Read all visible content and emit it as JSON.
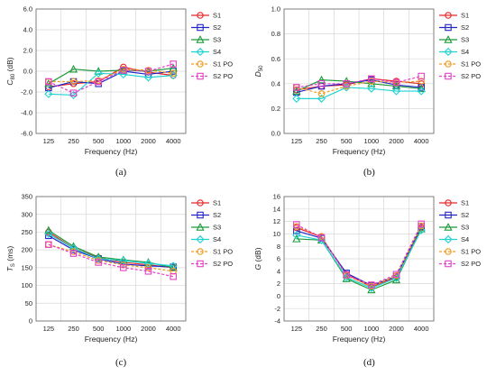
{
  "chart_data": [
    {
      "id": "a",
      "type": "line",
      "caption": "(a)",
      "ylabel_base": "C",
      "ylabel_sub": "80",
      "ylabel_unit": " (dB)",
      "xlabel": "Frequency (Hz)",
      "ylim": [
        -6,
        6
      ],
      "yticks": [
        "-6.0",
        "-4.0",
        "-2.0",
        "0.0",
        "2.0",
        "4.0",
        "6.0"
      ],
      "categories": [
        "125",
        "250",
        "500",
        "1000",
        "2000",
        "4000"
      ],
      "series": [
        {
          "name": "S1",
          "color": "#e8262a",
          "marker": "circle",
          "dashed": false,
          "values": [
            -1.5,
            -1.2,
            -1.0,
            0.4,
            -0.1,
            -0.4
          ]
        },
        {
          "name": "S2",
          "color": "#2124c9",
          "marker": "square",
          "dashed": false,
          "values": [
            -1.6,
            -1.0,
            -1.2,
            0.0,
            -0.3,
            0.0
          ]
        },
        {
          "name": "S3",
          "color": "#1c9a3a",
          "marker": "triangle",
          "dashed": false,
          "values": [
            -1.2,
            0.2,
            0.0,
            0.1,
            0.0,
            0.3
          ]
        },
        {
          "name": "S4",
          "color": "#21d2d2",
          "marker": "diamond",
          "dashed": false,
          "values": [
            -2.2,
            -2.3,
            -0.2,
            -0.3,
            -0.6,
            -0.4
          ]
        },
        {
          "name": "S1 PO",
          "color": "#f39a1c",
          "marker": "circle",
          "dashed": true,
          "values": [
            -1.0,
            -1.0,
            -0.9,
            0.2,
            0.1,
            -0.2
          ]
        },
        {
          "name": "S2 PO",
          "color": "#e53fc7",
          "marker": "square",
          "dashed": true,
          "values": [
            -1.0,
            -2.1,
            -1.0,
            0.1,
            0.0,
            0.7
          ]
        }
      ]
    },
    {
      "id": "b",
      "type": "line",
      "caption": "(b)",
      "ylabel_base": "D",
      "ylabel_sub": "50",
      "ylabel_unit": "",
      "xlabel": "Frequency (Hz)",
      "ylim": [
        0,
        1
      ],
      "yticks": [
        "0.0",
        "0.2",
        "0.4",
        "0.6",
        "0.8",
        "1.0"
      ],
      "categories": [
        "125",
        "250",
        "500",
        "1000",
        "2000",
        "4000"
      ],
      "series": [
        {
          "name": "S1",
          "color": "#e8262a",
          "marker": "circle",
          "dashed": false,
          "values": [
            0.35,
            0.38,
            0.39,
            0.44,
            0.42,
            0.4
          ]
        },
        {
          "name": "S2",
          "color": "#2124c9",
          "marker": "square",
          "dashed": false,
          "values": [
            0.33,
            0.38,
            0.4,
            0.43,
            0.39,
            0.37
          ]
        },
        {
          "name": "S3",
          "color": "#1c9a3a",
          "marker": "triangle",
          "dashed": false,
          "values": [
            0.34,
            0.43,
            0.42,
            0.4,
            0.38,
            0.36
          ]
        },
        {
          "name": "S4",
          "color": "#21d2d2",
          "marker": "diamond",
          "dashed": false,
          "values": [
            0.28,
            0.28,
            0.37,
            0.36,
            0.34,
            0.34
          ]
        },
        {
          "name": "S1 PO",
          "color": "#f39a1c",
          "marker": "circle",
          "dashed": true,
          "values": [
            0.37,
            0.32,
            0.38,
            0.42,
            0.41,
            0.42
          ]
        },
        {
          "name": "S2 PO",
          "color": "#e53fc7",
          "marker": "square",
          "dashed": true,
          "values": [
            0.37,
            0.4,
            0.4,
            0.44,
            0.41,
            0.46
          ]
        }
      ]
    },
    {
      "id": "c",
      "type": "line",
      "caption": "(c)",
      "ylabel_base": "T",
      "ylabel_sub": "S",
      "ylabel_unit": " (ms)",
      "xlabel": "Frequency (Hz)",
      "ylim": [
        0,
        350
      ],
      "yticks": [
        "0",
        "50",
        "100",
        "150",
        "200",
        "250",
        "300",
        "350"
      ],
      "categories": [
        "125",
        "250",
        "500",
        "1000",
        "2000",
        "4000"
      ],
      "series": [
        {
          "name": "S1",
          "color": "#e8262a",
          "marker": "circle",
          "dashed": false,
          "values": [
            250,
            205,
            178,
            165,
            158,
            150
          ]
        },
        {
          "name": "S2",
          "color": "#2124c9",
          "marker": "square",
          "dashed": false,
          "values": [
            240,
            200,
            175,
            160,
            155,
            152
          ]
        },
        {
          "name": "S3",
          "color": "#1c9a3a",
          "marker": "triangle",
          "dashed": false,
          "values": [
            255,
            210,
            180,
            172,
            165,
            150
          ]
        },
        {
          "name": "S4",
          "color": "#21d2d2",
          "marker": "diamond",
          "dashed": false,
          "values": [
            245,
            205,
            175,
            170,
            162,
            155
          ]
        },
        {
          "name": "S1 PO",
          "color": "#f39a1c",
          "marker": "circle",
          "dashed": true,
          "values": [
            215,
            195,
            170,
            158,
            150,
            140
          ]
        },
        {
          "name": "S2 PO",
          "color": "#e53fc7",
          "marker": "square",
          "dashed": true,
          "values": [
            215,
            190,
            165,
            150,
            140,
            125
          ]
        }
      ]
    },
    {
      "id": "d",
      "type": "line",
      "caption": "(d)",
      "ylabel_base": "G",
      "ylabel_sub": "",
      "ylabel_unit": " (dB)",
      "xlabel": "Frequency (Hz)",
      "ylim": [
        -4,
        16
      ],
      "yticks": [
        "-4",
        "-2",
        "0",
        "2",
        "4",
        "6",
        "8",
        "10",
        "12",
        "14",
        "16"
      ],
      "categories": [
        "125",
        "250",
        "500",
        "1000",
        "2000",
        "4000"
      ],
      "series": [
        {
          "name": "S1",
          "color": "#e8262a",
          "marker": "circle",
          "dashed": false,
          "values": [
            11.0,
            9.5,
            3.5,
            1.5,
            3.0,
            11.0
          ]
        },
        {
          "name": "S2",
          "color": "#2124c9",
          "marker": "square",
          "dashed": false,
          "values": [
            10.5,
            9.3,
            3.7,
            1.7,
            3.2,
            11.2
          ]
        },
        {
          "name": "S3",
          "color": "#1c9a3a",
          "marker": "triangle",
          "dashed": false,
          "values": [
            9.2,
            9.0,
            2.8,
            1.0,
            2.6,
            10.8
          ]
        },
        {
          "name": "S4",
          "color": "#21d2d2",
          "marker": "diamond",
          "dashed": false,
          "values": [
            9.8,
            9.0,
            3.0,
            1.3,
            2.9,
            10.6
          ]
        },
        {
          "name": "S1 PO",
          "color": "#f39a1c",
          "marker": "circle",
          "dashed": true,
          "values": [
            11.2,
            9.6,
            3.3,
            1.6,
            3.3,
            11.3
          ]
        },
        {
          "name": "S2 PO",
          "color": "#e53fc7",
          "marker": "square",
          "dashed": true,
          "values": [
            11.5,
            9.4,
            3.4,
            1.8,
            3.5,
            11.6
          ]
        }
      ]
    }
  ]
}
